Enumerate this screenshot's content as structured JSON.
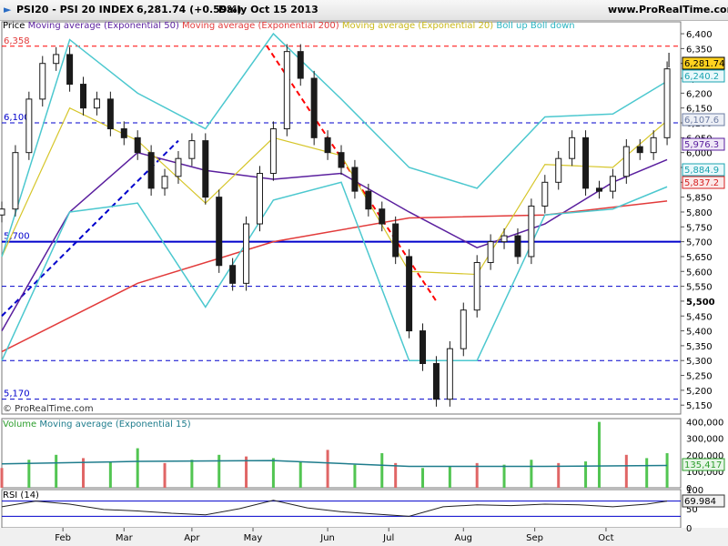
{
  "header": {
    "symbol": "PSI20 - PSI 20 INDEX",
    "price_change": "6,281.74 (+0.59%)",
    "period_date": "Daily  Oct 15 2013",
    "site": "www.ProRealTime.com"
  },
  "colors": {
    "ema50": "#5a1f9e",
    "ema200": "#e23b3b",
    "ema20": "#d6c62a",
    "boll": "#4cc8cf",
    "up": "#1a1a1a",
    "down": "#1a1a1a",
    "blue": "#0000cc",
    "red_dash": "#ff0000",
    "vol_up": "#52c552",
    "vol_down": "#e06666",
    "vol_ema": "#1e7c8c",
    "rsi": "#222222"
  },
  "price_panel": {
    "legend": [
      {
        "text": "Price",
        "color": "#000000"
      },
      {
        "text": "Moving average (Exponential 50)",
        "color": "#5a1f9e"
      },
      {
        "text": "Moving average (Exponential 200)",
        "color": "#e23b3b"
      },
      {
        "text": "Moving average (Exponential 20)",
        "color": "#c9b81a"
      },
      {
        "text": "Boll up Boll down",
        "color": "#2bb5c2"
      }
    ],
    "watermark": "© ProRealTime.com",
    "level_labels": [
      {
        "text": "6,358",
        "color": "#e23b3b"
      },
      {
        "text": "6,100",
        "color": "#0000cc"
      },
      {
        "text": "5,700",
        "color": "#0000cc"
      },
      {
        "text": "5,170",
        "color": "#0000cc"
      }
    ],
    "value_badges": [
      {
        "text": "6,281.74",
        "bg": "#ffd21f",
        "fg": "#000000"
      },
      {
        "text": "6,240.2",
        "bg": "#e9f8fb",
        "fg": "#1aa3b0"
      },
      {
        "text": "6,107.6",
        "bg": "#eceff6",
        "fg": "#6d7ca3"
      },
      {
        "text": "5,976.3",
        "bg": "#efe8f7",
        "fg": "#5a1f9e"
      },
      {
        "text": "5,884.9",
        "bg": "#e9f8fb",
        "fg": "#1aa3b0"
      },
      {
        "text": "5,837.2",
        "bg": "#fbe9e9",
        "fg": "#d62020"
      }
    ]
  },
  "volume_panel": {
    "legend": [
      {
        "text": "Volume",
        "color": "#2c9e2c"
      },
      {
        "text": "Moving average (Exponential 15)",
        "color": "#1e7c8c"
      }
    ],
    "badge": "135,417"
  },
  "rsi_panel": {
    "legend": "RSI (14)",
    "badge": "69.984"
  },
  "chart_data": [
    {
      "type": "line",
      "title": "PSI20 - PSI 20 INDEX  6,281.74 (+0.59%)  Daily  Oct 15 2013",
      "series": [
        {
          "name": "Price",
          "kind": "candlestick",
          "x": [
            0,
            4,
            8,
            12,
            16,
            20,
            24,
            28,
            32,
            36,
            40,
            44,
            48,
            52,
            56,
            60,
            64,
            68,
            72,
            76,
            80,
            84,
            88,
            92,
            96,
            100,
            104,
            108,
            112,
            116,
            120,
            124,
            128,
            132,
            136,
            140,
            144,
            148,
            152,
            156,
            160,
            164,
            168,
            172,
            176,
            180,
            184,
            188,
            192,
            196
          ],
          "y": [
            5810,
            6000,
            6180,
            6300,
            6330,
            6230,
            6150,
            6180,
            6080,
            6050,
            6000,
            5880,
            5920,
            5980,
            6040,
            5850,
            5620,
            5560,
            5760,
            5930,
            6080,
            6340,
            6250,
            6050,
            6000,
            5950,
            5870,
            5810,
            5760,
            5650,
            5400,
            5290,
            5170,
            5340,
            5470,
            5630,
            5700,
            5720,
            5650,
            5820,
            5900,
            5980,
            6050,
            5880,
            5870,
            5920,
            6020,
            6000,
            6050,
            6281.74
          ]
        },
        {
          "name": "Moving average (Exponential 50)",
          "x": [
            0,
            20,
            40,
            60,
            80,
            100,
            120,
            140,
            160,
            180,
            196
          ],
          "y": [
            5400,
            5800,
            6000,
            5940,
            5910,
            5930,
            5800,
            5680,
            5760,
            5900,
            5976.3
          ]
        },
        {
          "name": "Moving average (Exponential 200)",
          "x": [
            0,
            40,
            80,
            120,
            160,
            196
          ],
          "y": [
            5330,
            5560,
            5700,
            5780,
            5790,
            5837.2
          ]
        },
        {
          "name": "Moving average (Exponential 20)",
          "x": [
            0,
            20,
            40,
            60,
            80,
            100,
            120,
            140,
            160,
            180,
            196
          ],
          "y": [
            5650,
            6150,
            6040,
            5830,
            6050,
            5990,
            5600,
            5590,
            5960,
            5950,
            6107.6
          ]
        },
        {
          "name": "Boll up",
          "x": [
            0,
            20,
            40,
            60,
            80,
            100,
            120,
            140,
            160,
            180,
            196
          ],
          "y": [
            5650,
            6380,
            6200,
            6080,
            6400,
            6180,
            5950,
            5880,
            6120,
            6130,
            6240.2
          ]
        },
        {
          "name": "Boll down",
          "x": [
            0,
            20,
            40,
            60,
            80,
            100,
            120,
            140,
            160,
            180,
            196
          ],
          "y": [
            5300,
            5800,
            5830,
            5480,
            5840,
            5900,
            5300,
            5300,
            5790,
            5810,
            5884.9
          ]
        }
      ],
      "horizontal_levels": [
        6358,
        6100,
        5700,
        5550,
        5300,
        5170
      ],
      "trendlines": [
        {
          "color": "blue",
          "style": "dashed",
          "from": {
            "x": 0,
            "y": 5450
          },
          "to": {
            "x": 52,
            "y": 6040
          }
        },
        {
          "color": "red",
          "style": "dashed",
          "from": {
            "x": 78,
            "y": 6360
          },
          "to": {
            "x": 128,
            "y": 5500
          }
        }
      ],
      "x_ticks": [
        {
          "x": 18,
          "label": "Feb"
        },
        {
          "x": 36,
          "label": "Mar"
        },
        {
          "x": 56,
          "label": "Apr"
        },
        {
          "x": 74,
          "label": "May"
        },
        {
          "x": 96,
          "label": "Jun"
        },
        {
          "x": 114,
          "label": "Jul"
        },
        {
          "x": 136,
          "label": "Aug"
        },
        {
          "x": 157,
          "label": "Sep"
        },
        {
          "x": 178,
          "label": "Oct"
        }
      ],
      "y_ticks": [
        5150,
        5200,
        5250,
        5300,
        5350,
        5400,
        5450,
        5500,
        5550,
        5600,
        5650,
        5700,
        5750,
        5800,
        5850,
        5900,
        5950,
        6000,
        6050,
        6100,
        6150,
        6200,
        6250,
        6300,
        6350,
        6400
      ],
      "ylim": [
        5120,
        6440
      ],
      "xlim": [
        0,
        200
      ]
    },
    {
      "type": "bar",
      "title": "Volume",
      "series": [
        {
          "name": "Volume",
          "x": [
            0,
            8,
            16,
            24,
            32,
            40,
            48,
            56,
            64,
            72,
            80,
            88,
            96,
            104,
            112,
            116,
            124,
            132,
            140,
            148,
            156,
            164,
            172,
            176,
            184,
            190,
            196
          ],
          "values": [
            120000,
            170000,
            200000,
            180000,
            160000,
            240000,
            150000,
            170000,
            200000,
            190000,
            180000,
            160000,
            230000,
            140000,
            210000,
            150000,
            120000,
            130000,
            150000,
            140000,
            170000,
            150000,
            160000,
            400000,
            200000,
            180000,
            210000
          ]
        },
        {
          "name": "Moving average (Exponential 15)",
          "x": [
            0,
            40,
            80,
            120,
            160,
            196
          ],
          "values": [
            145000,
            160000,
            165000,
            130000,
            130000,
            135417
          ]
        }
      ],
      "y_ticks": [
        0,
        100000,
        200000,
        300000,
        400000
      ],
      "ylim": [
        0,
        420000
      ]
    },
    {
      "type": "line",
      "title": "RSI (14)",
      "series": [
        {
          "name": "RSI (14)",
          "x": [
            0,
            10,
            20,
            30,
            40,
            50,
            60,
            70,
            80,
            90,
            100,
            110,
            120,
            130,
            140,
            150,
            160,
            170,
            180,
            190,
            196
          ],
          "y": [
            55,
            70,
            62,
            48,
            44,
            38,
            34,
            50,
            72,
            52,
            42,
            36,
            30,
            55,
            60,
            58,
            62,
            60,
            55,
            62,
            69.984
          ]
        }
      ],
      "levels": [
        70,
        30
      ],
      "y_ticks": [
        0,
        50,
        100
      ],
      "ylim": [
        0,
        100
      ]
    }
  ]
}
